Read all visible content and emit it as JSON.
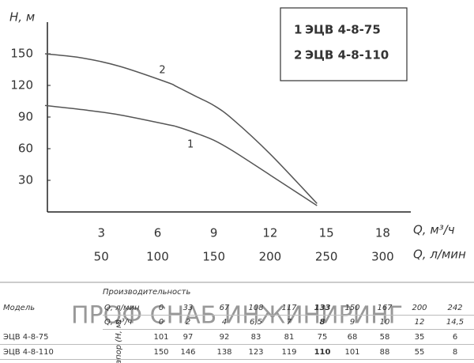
{
  "chart_data": {
    "type": "line",
    "ylabel": "Н, м",
    "xlabel": "Q, м³/ч",
    "xlabel2": "Q, л/мин",
    "x": [
      0,
      2,
      4,
      6.5,
      7,
      8,
      9,
      10,
      12,
      14.5
    ],
    "series": [
      {
        "name": "ЭЦВ 4-8-75",
        "label": "1",
        "color": "#555555",
        "values": [
          101,
          97,
          92,
          83,
          81,
          75,
          68,
          58,
          35,
          6
        ]
      },
      {
        "name": "ЭЦВ 4-8-110",
        "label": "2",
        "color": "#555555",
        "values": [
          150,
          146,
          138,
          123,
          119,
          110,
          101,
          88,
          55,
          8
        ]
      }
    ],
    "xlim": [
      0,
      19.5
    ],
    "ylim": [
      0,
      180
    ],
    "xticks": [
      3,
      6,
      9,
      12,
      15,
      18
    ],
    "x2ticks": [
      50,
      100,
      150,
      200,
      250,
      300
    ],
    "yticks": [
      30,
      60,
      90,
      120,
      150
    ],
    "legend": "top-right"
  },
  "table": {
    "caption": "Производительность",
    "model_header": "Модель",
    "head_header": "Напор (Н, м)",
    "rows": [
      [
        "",
        "Q, л/мин",
        "0",
        "33",
        "67",
        "108",
        "117",
        "133",
        "150",
        "167",
        "200",
        "242"
      ],
      [
        "",
        "Q, м³/ч",
        "0",
        "2",
        "4",
        "6,5",
        "7",
        "8",
        "9",
        "10",
        "12",
        "14,5"
      ],
      [
        "ЭЦВ 4-8-75",
        "",
        "101",
        "97",
        "92",
        "83",
        "81",
        "75",
        "68",
        "58",
        "35",
        "6"
      ],
      [
        "ЭЦВ 4-8-110",
        "",
        "150",
        "146",
        "138",
        "123",
        "119",
        "110",
        "101",
        "88",
        "55",
        "8"
      ]
    ],
    "bold_column": 7
  },
  "watermark": "ПРОФ СНАБ ИНЖИНИРИНГ"
}
